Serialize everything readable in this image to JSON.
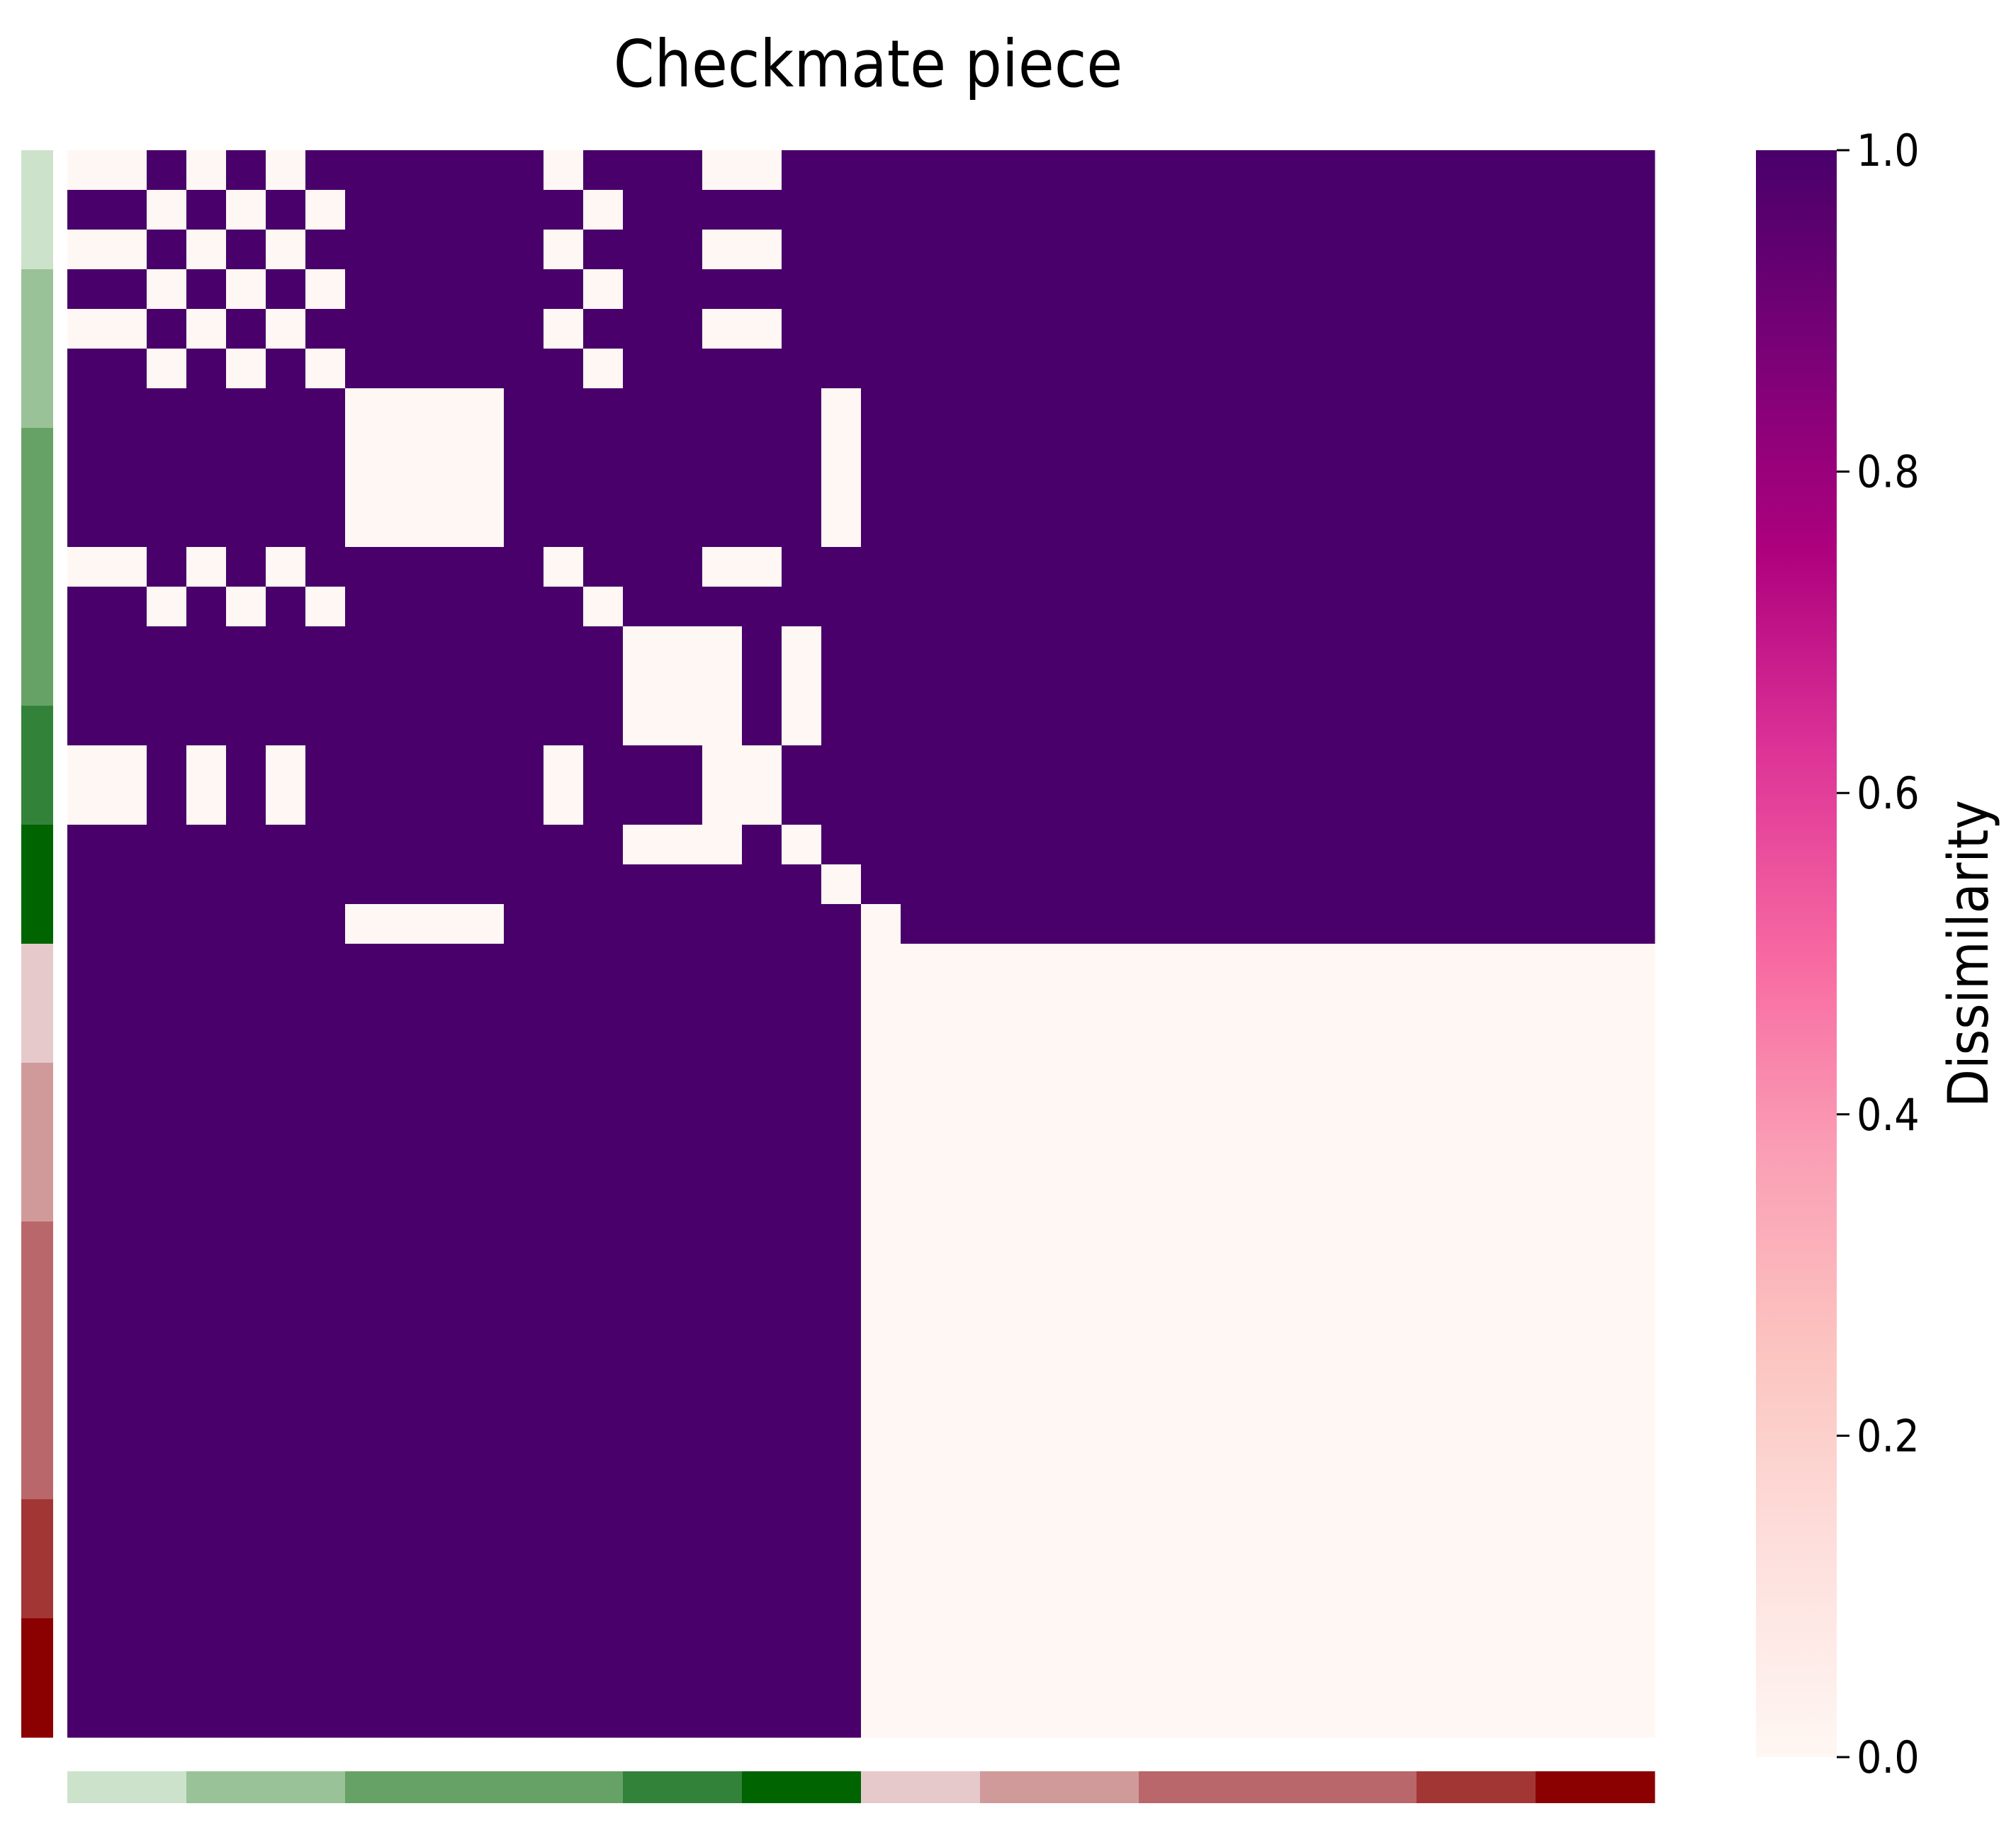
{
  "chart_data": {
    "type": "heatmap",
    "title": "Checkmate piece",
    "colorbar": {
      "label": "Dissimilarity",
      "range": [
        0,
        1
      ],
      "ticks": [
        "0.0",
        "0.2",
        "0.4",
        "0.6",
        "0.8",
        "1.0"
      ],
      "colormap": [
        "#fff7f3",
        "#fde0dd",
        "#fcc5c0",
        "#fa9fb5",
        "#f768a1",
        "#dd3497",
        "#ae017e",
        "#7a0177",
        "#49006a"
      ]
    },
    "size": 40,
    "groups": [
      {
        "count": 3,
        "color": "#cde2cb"
      },
      {
        "count": 4,
        "color": "#9ac298"
      },
      {
        "count": 7,
        "color": "#66a266"
      },
      {
        "count": 3,
        "color": "#33823a"
      },
      {
        "count": 3,
        "color": "#006400"
      },
      {
        "count": 3,
        "color": "#e6cacb"
      },
      {
        "count": 4,
        "color": "#d19a9a"
      },
      {
        "count": 7,
        "color": "#b9676a"
      },
      {
        "count": 3,
        "color": "#a23635"
      },
      {
        "count": 3,
        "color": "#8b0000"
      }
    ],
    "zero_cells_upper_left": [
      [
        0,
        0
      ],
      [
        0,
        1
      ],
      [
        0,
        3
      ],
      [
        0,
        5
      ],
      [
        0,
        12
      ],
      [
        0,
        16
      ],
      [
        0,
        17
      ],
      [
        1,
        2
      ],
      [
        1,
        4
      ],
      [
        1,
        6
      ],
      [
        1,
        13
      ],
      [
        2,
        0
      ],
      [
        2,
        1
      ],
      [
        2,
        3
      ],
      [
        2,
        5
      ],
      [
        2,
        12
      ],
      [
        2,
        16
      ],
      [
        2,
        17
      ],
      [
        3,
        2
      ],
      [
        3,
        4
      ],
      [
        3,
        6
      ],
      [
        3,
        13
      ],
      [
        4,
        0
      ],
      [
        4,
        1
      ],
      [
        4,
        3
      ],
      [
        4,
        5
      ],
      [
        4,
        12
      ],
      [
        4,
        16
      ],
      [
        4,
        17
      ],
      [
        5,
        2
      ],
      [
        5,
        4
      ],
      [
        5,
        6
      ],
      [
        5,
        13
      ],
      [
        6,
        7
      ],
      [
        6,
        8
      ],
      [
        6,
        9
      ],
      [
        6,
        10
      ],
      [
        6,
        19
      ],
      [
        7,
        7
      ],
      [
        7,
        8
      ],
      [
        7,
        9
      ],
      [
        7,
        10
      ],
      [
        7,
        19
      ],
      [
        8,
        7
      ],
      [
        8,
        8
      ],
      [
        8,
        9
      ],
      [
        8,
        10
      ],
      [
        8,
        19
      ],
      [
        9,
        7
      ],
      [
        9,
        8
      ],
      [
        9,
        9
      ],
      [
        9,
        10
      ],
      [
        9,
        19
      ],
      [
        10,
        0
      ],
      [
        10,
        1
      ],
      [
        10,
        3
      ],
      [
        10,
        5
      ],
      [
        10,
        12
      ],
      [
        10,
        16
      ],
      [
        10,
        17
      ],
      [
        11,
        2
      ],
      [
        11,
        4
      ],
      [
        11,
        6
      ],
      [
        11,
        13
      ],
      [
        12,
        14
      ],
      [
        12,
        15
      ],
      [
        12,
        16
      ],
      [
        12,
        18
      ],
      [
        13,
        14
      ],
      [
        13,
        15
      ],
      [
        13,
        16
      ],
      [
        13,
        18
      ],
      [
        14,
        14
      ],
      [
        14,
        15
      ],
      [
        14,
        16
      ],
      [
        14,
        18
      ],
      [
        15,
        0
      ],
      [
        15,
        1
      ],
      [
        15,
        3
      ],
      [
        15,
        5
      ],
      [
        15,
        12
      ],
      [
        15,
        16
      ],
      [
        15,
        17
      ],
      [
        16,
        0
      ],
      [
        16,
        1
      ],
      [
        16,
        3
      ],
      [
        16,
        5
      ],
      [
        16,
        12
      ],
      [
        16,
        16
      ],
      [
        16,
        17
      ],
      [
        17,
        14
      ],
      [
        17,
        15
      ],
      [
        17,
        16
      ],
      [
        17,
        18
      ],
      [
        18,
        19
      ],
      [
        19,
        7
      ],
      [
        19,
        8
      ],
      [
        19,
        9
      ],
      [
        19,
        10
      ],
      [
        19,
        20
      ]
    ],
    "zero_block_lower_right": {
      "from": 20,
      "to": 39,
      "value": 0
    },
    "default_value": 1
  }
}
